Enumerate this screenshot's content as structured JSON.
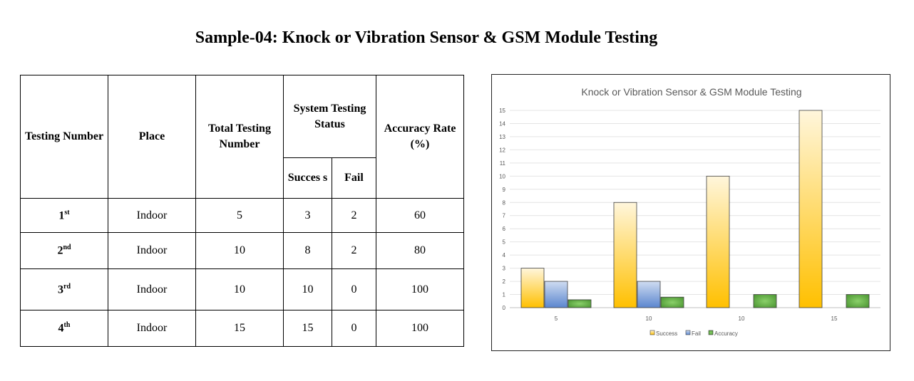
{
  "title": "Sample-04: Knock or Vibration Sensor & GSM Module Testing",
  "table": {
    "headers": {
      "testing_number": "Testing Number",
      "place": "Place",
      "total": "Total Testing Number",
      "status": "System Testing Status",
      "success": "Succes s",
      "fail": "Fail",
      "accuracy": "Accuracy Rate (%)"
    },
    "rows": [
      {
        "num": "1",
        "suffix": "st",
        "place": "Indoor",
        "total": "5",
        "success": "3",
        "fail": "2",
        "accuracy": "60"
      },
      {
        "num": "2",
        "suffix": "nd",
        "place": "Indoor",
        "total": "10",
        "success": "8",
        "fail": "2",
        "accuracy": "80"
      },
      {
        "num": "3",
        "suffix": "rd",
        "place": "Indoor",
        "total": "10",
        "success": "10",
        "fail": "0",
        "accuracy": "100"
      },
      {
        "num": "4",
        "suffix": "th",
        "place": "Indoor",
        "total": "15",
        "success": "15",
        "fail": "0",
        "accuracy": "100"
      }
    ]
  },
  "chart_data": {
    "type": "bar",
    "title": "Knock or Vibration Sensor & GSM Module Testing",
    "categories": [
      "5",
      "10",
      "10",
      "15"
    ],
    "series": [
      {
        "name": "Success",
        "values": [
          3,
          8,
          10,
          15
        ],
        "color": "#ffc000"
      },
      {
        "name": "Fail",
        "values": [
          2,
          2,
          0,
          0
        ],
        "color": "#4472c4"
      },
      {
        "name": "Accuracy",
        "values": [
          0.6,
          0.8,
          1,
          1
        ],
        "color": "#4e9a2e"
      }
    ],
    "yticks": [
      "0",
      "1",
      "2",
      "3",
      "4",
      "5",
      "6",
      "7",
      "8",
      "9",
      "10",
      "11",
      "12",
      "13",
      "14",
      "15"
    ],
    "ylim": [
      0,
      15
    ],
    "grid": true,
    "legend": "bottom"
  }
}
